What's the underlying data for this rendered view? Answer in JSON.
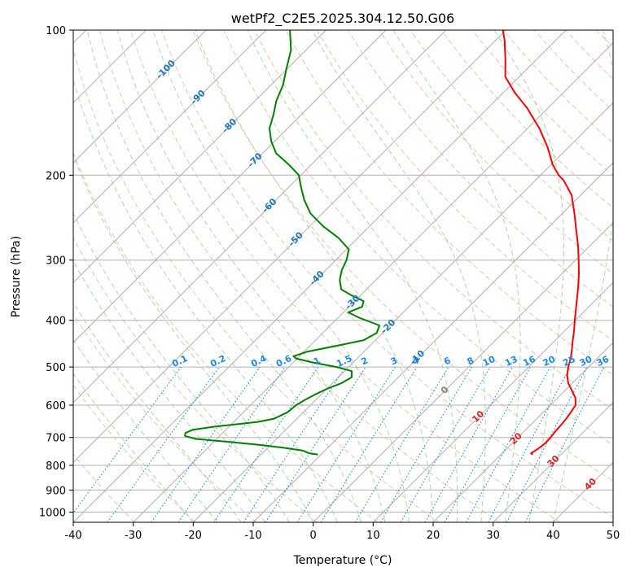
{
  "chart_data": {
    "type": "skew-t",
    "title": "wetPf2_C2E5.2025.304.12.50.G06",
    "xlabel": "Temperature (°C)",
    "ylabel": "Pressure (hPa)",
    "xlim": [
      -40,
      50
    ],
    "ylim": [
      1050,
      100
    ],
    "x_ticks": [
      "-40",
      "-30",
      "-20",
      "-10",
      "0",
      "10",
      "20",
      "30",
      "40",
      "50"
    ],
    "y_ticks": [
      "100",
      "200",
      "300",
      "400",
      "500",
      "600",
      "700",
      "800",
      "900",
      "1000"
    ],
    "pressure_ticks": [
      100,
      200,
      300,
      400,
      500,
      600,
      700,
      800,
      900,
      1000
    ],
    "temperature_ticks": [
      -40,
      -30,
      -20,
      -10,
      0,
      10,
      20,
      30,
      40,
      50
    ],
    "grid": true,
    "colors": {
      "temperature": "#ff0000",
      "dewpoint": "#008000",
      "isotherm": "#b0b0b0",
      "dry_adiabat": "#f4a582",
      "moist_adiabat": "#8fce8f",
      "mixing_ratio": "#1e88e5",
      "wetbulb": "#d2b48c"
    },
    "isotherm_labels": [
      "-100",
      "-90",
      "-80",
      "-70",
      "-60",
      "-50",
      "-40",
      "-30",
      "-20",
      "-10",
      "0",
      "10",
      "20",
      "30",
      "40"
    ],
    "mixing_ratio_labels": [
      "0.1",
      "0.2",
      "0.4",
      "0.6",
      "1",
      "1.5",
      "2",
      "3",
      "4",
      "6",
      "8",
      "10",
      "13",
      "16",
      "20",
      "25",
      "30",
      "36"
    ],
    "series": [
      {
        "name": "Temperature",
        "color": "#ff0000",
        "points": [
          [
            760,
            25.3
          ],
          [
            755,
            24.8
          ],
          [
            740,
            25.2
          ],
          [
            720,
            25.5
          ],
          [
            700,
            25.4
          ],
          [
            680,
            25.2
          ],
          [
            660,
            25.1
          ],
          [
            640,
            24.9
          ],
          [
            620,
            24.6
          ],
          [
            600,
            24.2
          ],
          [
            580,
            23.0
          ],
          [
            560,
            21.2
          ],
          [
            540,
            19.3
          ],
          [
            520,
            17.8
          ],
          [
            500,
            16.6
          ],
          [
            480,
            15.6
          ],
          [
            460,
            14.3
          ],
          [
            440,
            12.9
          ],
          [
            420,
            11.5
          ],
          [
            400,
            9.9
          ],
          [
            380,
            8.3
          ],
          [
            360,
            6.6
          ],
          [
            340,
            4.8
          ],
          [
            320,
            2.8
          ],
          [
            300,
            0.5
          ],
          [
            280,
            -2.0
          ],
          [
            260,
            -4.9
          ],
          [
            240,
            -8.0
          ],
          [
            220,
            -11.5
          ],
          [
            205,
            -15.3
          ],
          [
            200,
            -17.0
          ],
          [
            190,
            -19.8
          ],
          [
            175,
            -23.5
          ],
          [
            160,
            -28.0
          ],
          [
            145,
            -33.5
          ],
          [
            135,
            -38.0
          ],
          [
            125,
            -42.3
          ],
          [
            115,
            -45.2
          ],
          [
            105,
            -48.5
          ],
          [
            100,
            -50.5
          ]
        ]
      },
      {
        "name": "Dewpoint",
        "color": "#008000",
        "points": [
          [
            760,
            -10.5
          ],
          [
            755,
            -12.2
          ],
          [
            745,
            -13.8
          ],
          [
            735,
            -17.5
          ],
          [
            725,
            -22.0
          ],
          [
            715,
            -27.5
          ],
          [
            705,
            -33.5
          ],
          [
            695,
            -35.8
          ],
          [
            685,
            -36.2
          ],
          [
            675,
            -35.5
          ],
          [
            665,
            -32.5
          ],
          [
            650,
            -26.0
          ],
          [
            640,
            -23.8
          ],
          [
            620,
            -22.6
          ],
          [
            600,
            -22.4
          ],
          [
            585,
            -21.8
          ],
          [
            570,
            -21.0
          ],
          [
            555,
            -20.0
          ],
          [
            540,
            -18.5
          ],
          [
            525,
            -17.8
          ],
          [
            510,
            -18.8
          ],
          [
            500,
            -22.0
          ],
          [
            490,
            -26.5
          ],
          [
            480,
            -30.2
          ],
          [
            475,
            -31.0
          ],
          [
            465,
            -29.5
          ],
          [
            450,
            -25.0
          ],
          [
            440,
            -22.0
          ],
          [
            425,
            -21.0
          ],
          [
            410,
            -21.8
          ],
          [
            395,
            -26.5
          ],
          [
            385,
            -29.2
          ],
          [
            375,
            -27.8
          ],
          [
            365,
            -28.5
          ],
          [
            355,
            -31.5
          ],
          [
            345,
            -34.2
          ],
          [
            330,
            -36.0
          ],
          [
            315,
            -37.3
          ],
          [
            300,
            -38.2
          ],
          [
            285,
            -39.6
          ],
          [
            270,
            -43.2
          ],
          [
            255,
            -47.8
          ],
          [
            240,
            -52.0
          ],
          [
            225,
            -55.3
          ],
          [
            210,
            -58.3
          ],
          [
            200,
            -60.3
          ],
          [
            190,
            -63.8
          ],
          [
            180,
            -67.8
          ],
          [
            170,
            -70.6
          ],
          [
            160,
            -73.0
          ],
          [
            150,
            -74.6
          ],
          [
            140,
            -76.5
          ],
          [
            130,
            -78.0
          ],
          [
            120,
            -80.2
          ],
          [
            110,
            -82.5
          ],
          [
            100,
            -86.0
          ]
        ]
      }
    ]
  }
}
